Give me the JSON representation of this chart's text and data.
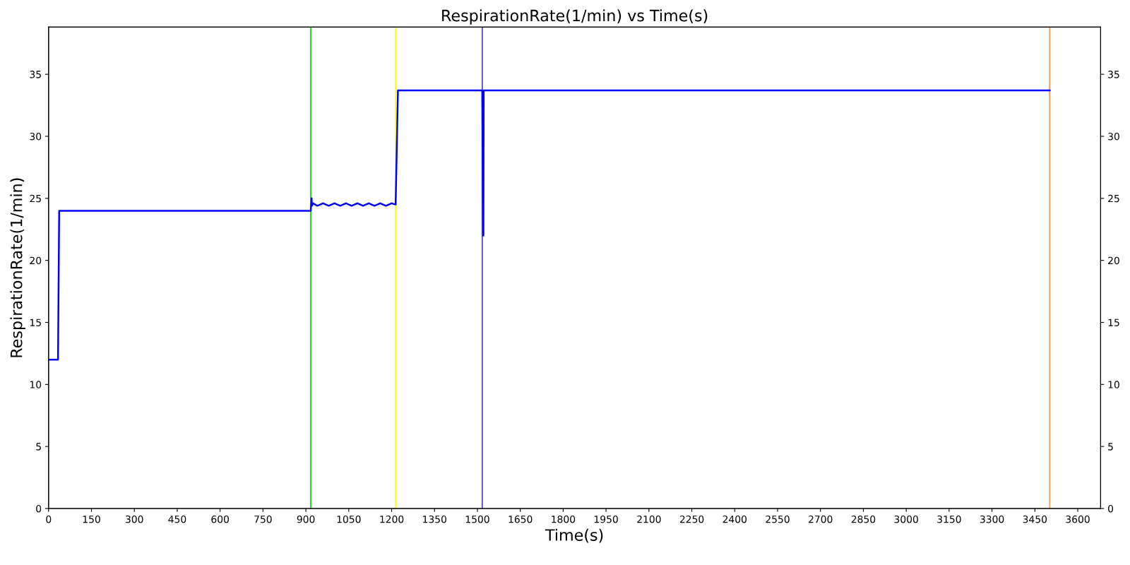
{
  "chart_data": {
    "type": "line",
    "title": "RespirationRate(1/min) vs Time(s)",
    "xlabel": "Time(s)",
    "ylabel": "RespirationRate(1/min)",
    "x": [
      0,
      33,
      37,
      917,
      920,
      921,
      925,
      940,
      960,
      980,
      1000,
      1020,
      1040,
      1060,
      1080,
      1100,
      1120,
      1140,
      1160,
      1180,
      1200,
      1214,
      1222,
      1517,
      1520,
      1521,
      1522,
      3502
    ],
    "series": [
      {
        "color": "#0000ff",
        "values": [
          12,
          12,
          24,
          24,
          25,
          24.4,
          24.6,
          24.4,
          24.6,
          24.4,
          24.6,
          24.4,
          24.6,
          24.4,
          24.6,
          24.4,
          24.6,
          24.4,
          24.6,
          24.4,
          24.6,
          24.5,
          33.7,
          33.7,
          22,
          22,
          33.7,
          33.7
        ]
      }
    ],
    "xlim": [
      0,
      3680
    ],
    "xticks": [
      0,
      150,
      300,
      450,
      600,
      750,
      900,
      1050,
      1200,
      1350,
      1500,
      1650,
      1800,
      1950,
      2100,
      2250,
      2400,
      2550,
      2700,
      2850,
      3000,
      3150,
      3300,
      3450,
      3600
    ],
    "ylim": [
      0,
      38.8
    ],
    "yticks": [
      0,
      5,
      10,
      15,
      20,
      25,
      30,
      35
    ],
    "y2lim": [
      0,
      38.8
    ],
    "y2ticks": [
      0,
      5,
      10,
      15,
      20,
      25,
      30,
      35
    ],
    "ref_lines": [
      {
        "axis": "x",
        "value": 917,
        "color": "#22dd22"
      },
      {
        "axis": "x",
        "value": 1214,
        "color": "#ffff00"
      },
      {
        "axis": "x",
        "value": 1517,
        "color": "#6a5acd"
      },
      {
        "axis": "x",
        "value": 3502,
        "color": "#f4a460"
      }
    ],
    "grid": false,
    "line_style": "solid",
    "marker": "none"
  }
}
